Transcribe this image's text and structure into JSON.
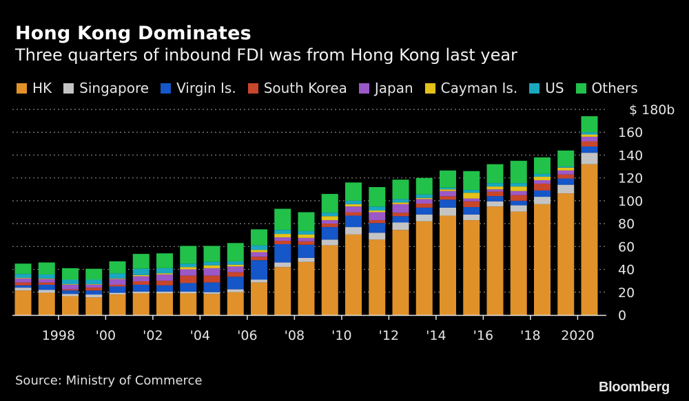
{
  "header": {
    "title": "Hong Kong Dominates",
    "subtitle": "Three quarters of inbound FDI was from Hong Kong last year"
  },
  "footer": {
    "source": "Source: Ministry of Commerce",
    "brand": "Bloomberg"
  },
  "chart_data": {
    "type": "bar",
    "stacked": true,
    "title": "Hong Kong Dominates",
    "subtitle": "Three quarters of inbound FDI was from Hong Kong last year",
    "xlabel": "",
    "ylabel": "",
    "unit_label": "$ 180b",
    "ylim": [
      0,
      180
    ],
    "yticks": [
      0,
      20,
      40,
      60,
      80,
      100,
      120,
      140,
      160,
      180
    ],
    "ytick_labels": [
      "0",
      "20",
      "40",
      "60",
      "80",
      "100",
      "120",
      "140",
      "160",
      "$ 180b"
    ],
    "grid": true,
    "legend_position": "top",
    "categories": [
      1997,
      1998,
      1999,
      2000,
      2001,
      2002,
      2003,
      2004,
      2005,
      2006,
      2007,
      2008,
      2009,
      2010,
      2011,
      2012,
      2013,
      2014,
      2015,
      2016,
      2017,
      2018,
      2019,
      2020,
      2021
    ],
    "xtick_labels": [
      {
        "year": 1998,
        "label": "1998"
      },
      {
        "year": 2000,
        "label": "'00"
      },
      {
        "year": 2002,
        "label": "'02"
      },
      {
        "year": 2004,
        "label": "'04"
      },
      {
        "year": 2006,
        "label": "'06"
      },
      {
        "year": 2008,
        "label": "'08"
      },
      {
        "year": 2010,
        "label": "'10"
      },
      {
        "year": 2012,
        "label": "'12"
      },
      {
        "year": 2014,
        "label": "'14"
      },
      {
        "year": 2016,
        "label": "'16"
      },
      {
        "year": 2018,
        "label": "'18"
      },
      {
        "year": 2020,
        "label": "2020"
      }
    ],
    "series": [
      {
        "name": "HK",
        "color": "#e0912a",
        "values": [
          21.5,
          19.5,
          16.5,
          15.5,
          18,
          19,
          19,
          19,
          18.5,
          20,
          28.5,
          42,
          46.5,
          61,
          70.5,
          66,
          74.5,
          82,
          87,
          83,
          95,
          90.5,
          97,
          106.5,
          132
        ]
      },
      {
        "name": "Singapore",
        "color": "#c4c4c4",
        "values": [
          2.5,
          2.5,
          2,
          2.5,
          1.5,
          1.5,
          1.5,
          1.5,
          1.5,
          2.5,
          2.5,
          4,
          3.5,
          5,
          6.5,
          6,
          6.5,
          6,
          7,
          5,
          4.5,
          5.5,
          6.5,
          7.5,
          10
        ]
      },
      {
        "name": "Virgin Is.",
        "color": "#1556c8",
        "values": [
          2,
          4.5,
          3,
          3.5,
          5.5,
          6,
          5.5,
          7.5,
          8.5,
          11,
          17,
          16,
          11.5,
          11,
          10,
          8.5,
          5.5,
          6,
          7,
          6.5,
          4.5,
          4,
          5.5,
          5.5,
          5.5
        ]
      },
      {
        "name": "South Korea",
        "color": "#c8462a",
        "values": [
          2.5,
          2,
          1,
          2.5,
          1.5,
          3,
          4,
          6.5,
          6,
          4,
          3,
          3,
          3,
          3,
          3,
          2.5,
          3,
          3.5,
          3,
          5,
          4,
          5,
          6,
          3.5,
          4.5
        ]
      },
      {
        "name": "Japan",
        "color": "#9b59c8",
        "values": [
          3.5,
          3,
          4,
          2.5,
          5,
          4.5,
          5.5,
          5.5,
          6.5,
          5,
          4,
          3,
          3,
          3,
          5,
          7,
          7.5,
          4,
          4.5,
          2.5,
          2,
          3.5,
          3,
          3.5,
          4
        ]
      },
      {
        "name": "Cayman Is.",
        "color": "#e4c21a",
        "values": [
          0.5,
          0.5,
          0.5,
          0.5,
          0.5,
          1,
          1,
          2,
          2.5,
          1.5,
          2,
          3,
          3,
          3.5,
          2,
          1.5,
          1.5,
          1,
          1.5,
          5,
          2.5,
          4,
          3,
          2.5,
          2
        ]
      },
      {
        "name": "US",
        "color": "#1aa7c0",
        "values": [
          3.5,
          3.5,
          4,
          4,
          4.5,
          5.5,
          4.5,
          3,
          3,
          3,
          4,
          3.5,
          3,
          3,
          3,
          3.5,
          3,
          3,
          1.5,
          2.5,
          3,
          3,
          2.5,
          1,
          2
        ]
      },
      {
        "name": "Others",
        "color": "#22c14a",
        "values": [
          9,
          10.5,
          10,
          9.5,
          10.5,
          13,
          13,
          15.5,
          14,
          16,
          14,
          18.5,
          16.5,
          16.5,
          16,
          17,
          17,
          14.5,
          15,
          16.5,
          16.5,
          19.5,
          14.5,
          14,
          14
        ]
      }
    ]
  }
}
